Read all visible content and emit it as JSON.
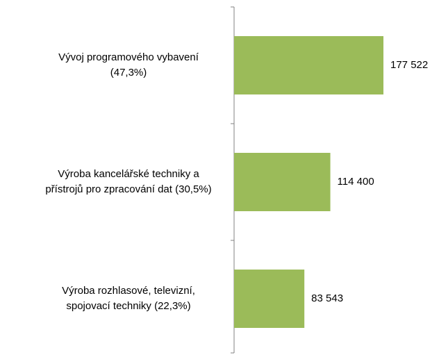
{
  "chart_data": {
    "type": "hbar",
    "categories": [
      "Vývoj programového vybavení\n(47,3%)",
      "Výroba kancelářské techniky a\npřístrojů pro zpracování dat (30,5%)",
      "Výroba rozhlasové, televizní,\nspojovací techniky (22,3%)"
    ],
    "values": [
      177522,
      114400,
      83543
    ],
    "value_labels": [
      "177 522",
      "114 400",
      "83 543"
    ],
    "color": "#9bbb59"
  }
}
